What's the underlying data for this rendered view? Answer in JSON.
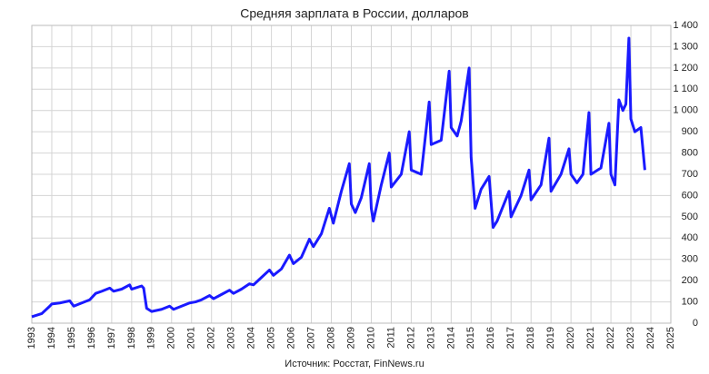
{
  "chart_data": {
    "type": "line",
    "title": "Средняя зарплата в России, долларов",
    "source": "Источник: Росстат, FinNews.ru",
    "x": [
      1993.0,
      1993.5,
      1993.9,
      1994.0,
      1994.4,
      1994.9,
      1995.1,
      1995.5,
      1995.9,
      1996.2,
      1996.5,
      1996.9,
      1997.1,
      1997.5,
      1997.9,
      1998.0,
      1998.5,
      1998.6,
      1998.75,
      1999.0,
      1999.5,
      1999.9,
      2000.1,
      2000.5,
      2000.9,
      2001.2,
      2001.5,
      2001.9,
      2002.1,
      2002.5,
      2002.9,
      2003.1,
      2003.5,
      2003.9,
      2004.1,
      2004.5,
      2004.9,
      2005.1,
      2005.5,
      2005.9,
      2006.1,
      2006.5,
      2006.9,
      2007.1,
      2007.5,
      2007.9,
      2008.1,
      2008.5,
      2008.9,
      2009.0,
      2009.2,
      2009.5,
      2009.9,
      2010.0,
      2010.1,
      2010.5,
      2010.9,
      2011.0,
      2011.5,
      2011.9,
      2012.0,
      2012.5,
      2012.9,
      2013.0,
      2013.5,
      2013.9,
      2014.0,
      2014.3,
      2014.5,
      2014.9,
      2015.0,
      2015.2,
      2015.5,
      2015.9,
      2016.1,
      2016.3,
      2016.6,
      2016.9,
      2017.0,
      2017.5,
      2017.9,
      2018.0,
      2018.5,
      2018.9,
      2019.0,
      2019.5,
      2019.9,
      2020.0,
      2020.3,
      2020.6,
      2020.9,
      2021.0,
      2021.5,
      2021.9,
      2022.0,
      2022.2,
      2022.4,
      2022.6,
      2022.75,
      2022.9,
      2023.0,
      2023.2,
      2023.5,
      2023.7
    ],
    "series": [
      {
        "name": "Средняя зарплата",
        "color": "#1a1aff",
        "values": [
          30,
          45,
          80,
          90,
          95,
          105,
          80,
          95,
          110,
          140,
          150,
          165,
          150,
          160,
          180,
          160,
          175,
          165,
          70,
          55,
          65,
          80,
          65,
          80,
          95,
          100,
          110,
          130,
          115,
          135,
          155,
          140,
          160,
          185,
          180,
          215,
          250,
          225,
          255,
          320,
          280,
          310,
          395,
          360,
          420,
          540,
          470,
          620,
          750,
          560,
          520,
          590,
          750,
          540,
          480,
          650,
          800,
          640,
          700,
          900,
          720,
          700,
          1040,
          840,
          860,
          1185,
          920,
          880,
          950,
          1200,
          780,
          540,
          630,
          690,
          450,
          480,
          550,
          620,
          500,
          600,
          720,
          580,
          650,
          870,
          620,
          700,
          820,
          700,
          660,
          700,
          990,
          700,
          730,
          940,
          700,
          650,
          1050,
          1000,
          1030,
          1340,
          960,
          900,
          920,
          720
        ]
      }
    ],
    "xlim": [
      1993,
      2025
    ],
    "xticks": [
      1993,
      1994,
      1995,
      1996,
      1997,
      1998,
      1999,
      2000,
      2001,
      2002,
      2003,
      2004,
      2005,
      2006,
      2007,
      2008,
      2009,
      2010,
      2011,
      2012,
      2013,
      2014,
      2015,
      2016,
      2017,
      2018,
      2019,
      2020,
      2021,
      2022,
      2023,
      2024,
      2025
    ],
    "ylim": [
      0,
      1400
    ],
    "yticks": [
      0,
      100,
      200,
      300,
      400,
      500,
      600,
      700,
      800,
      900,
      {
        "value": 1000,
        "label": "1 000"
      },
      {
        "value": 1100,
        "label": "1 100"
      },
      {
        "value": 1200,
        "label": "1 200"
      },
      {
        "value": 1300,
        "label": "1 300"
      },
      {
        "value": 1400,
        "label": "1 400"
      }
    ],
    "grid": true
  }
}
